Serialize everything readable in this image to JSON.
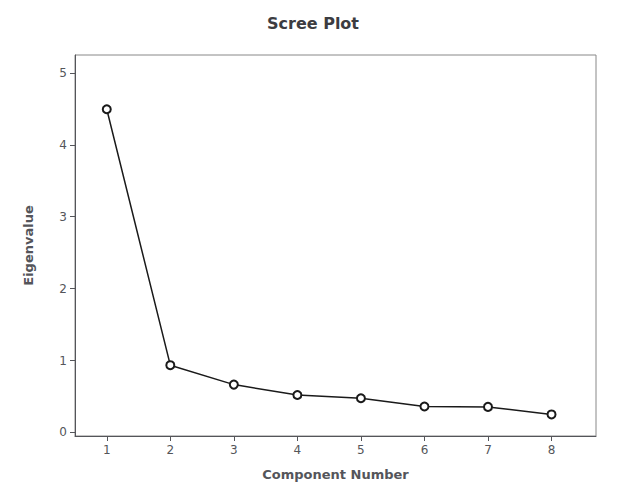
{
  "chart_data": {
    "type": "line",
    "title": "Scree Plot",
    "xlabel": "Component Number",
    "ylabel": "Eigenvalue",
    "x": [
      1,
      2,
      3,
      4,
      5,
      6,
      7,
      8
    ],
    "values": [
      4.495,
      0.935,
      0.665,
      0.52,
      0.475,
      0.36,
      0.355,
      0.25
    ],
    "xlim": [
      0.5,
      8.7
    ],
    "xticks": [
      1,
      2,
      3,
      4,
      5,
      6,
      7,
      8
    ],
    "ylim": [
      -0.05,
      5.25
    ],
    "yticks": [
      0,
      1,
      2,
      3,
      4,
      5
    ],
    "color": "#1a1a1a",
    "marker": "circle",
    "grid": false
  }
}
